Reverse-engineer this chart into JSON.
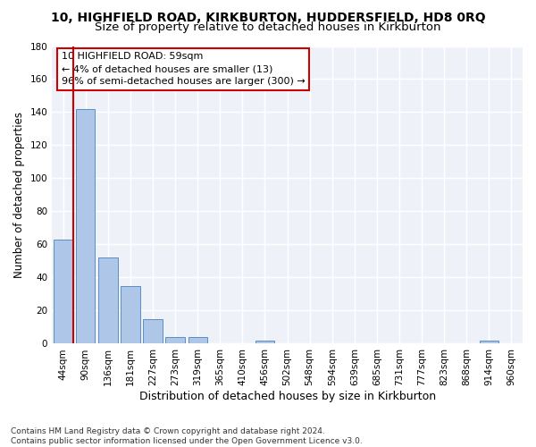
{
  "title": "10, HIGHFIELD ROAD, KIRKBURTON, HUDDERSFIELD, HD8 0RQ",
  "subtitle": "Size of property relative to detached houses in Kirkburton",
  "xlabel": "Distribution of detached houses by size in Kirkburton",
  "ylabel": "Number of detached properties",
  "categories": [
    "44sqm",
    "90sqm",
    "136sqm",
    "181sqm",
    "227sqm",
    "273sqm",
    "319sqm",
    "365sqm",
    "410sqm",
    "456sqm",
    "502sqm",
    "548sqm",
    "594sqm",
    "639sqm",
    "685sqm",
    "731sqm",
    "777sqm",
    "823sqm",
    "868sqm",
    "914sqm",
    "960sqm"
  ],
  "values": [
    63,
    142,
    52,
    35,
    15,
    4,
    4,
    0,
    0,
    2,
    0,
    0,
    0,
    0,
    0,
    0,
    0,
    0,
    0,
    2,
    0
  ],
  "bar_color": "#aec6e8",
  "bar_edge_color": "#5a8fc2",
  "annotation_line1": "10 HIGHFIELD ROAD: 59sqm",
  "annotation_line2": "← 4% of detached houses are smaller (13)",
  "annotation_line3": "96% of semi-detached houses are larger (300) →",
  "annotation_box_color": "#ffffff",
  "annotation_box_edge_color": "#cc0000",
  "vline_color": "#cc0000",
  "vline_x": 0.46,
  "ylim": [
    0,
    180
  ],
  "yticks": [
    0,
    20,
    40,
    60,
    80,
    100,
    120,
    140,
    160,
    180
  ],
  "fig_bg_color": "#ffffff",
  "plot_bg_color": "#eef2f8",
  "grid_color": "#ffffff",
  "footer": "Contains HM Land Registry data © Crown copyright and database right 2024.\nContains public sector information licensed under the Open Government Licence v3.0.",
  "title_fontsize": 10,
  "subtitle_fontsize": 9.5,
  "xlabel_fontsize": 9,
  "ylabel_fontsize": 8.5,
  "tick_fontsize": 7.5,
  "annotation_fontsize": 8,
  "footer_fontsize": 6.5
}
